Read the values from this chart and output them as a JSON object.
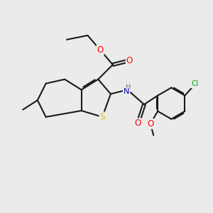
{
  "background_color": "#ebebeb",
  "bond_color": "#1a1a1a",
  "atom_colors": {
    "O": "#ff0000",
    "N": "#0000cc",
    "S": "#cccc00",
    "Cl": "#00aa00",
    "C": "#1a1a1a",
    "H": "#707070"
  },
  "figsize": [
    3.0,
    3.0
  ],
  "dpi": 100
}
